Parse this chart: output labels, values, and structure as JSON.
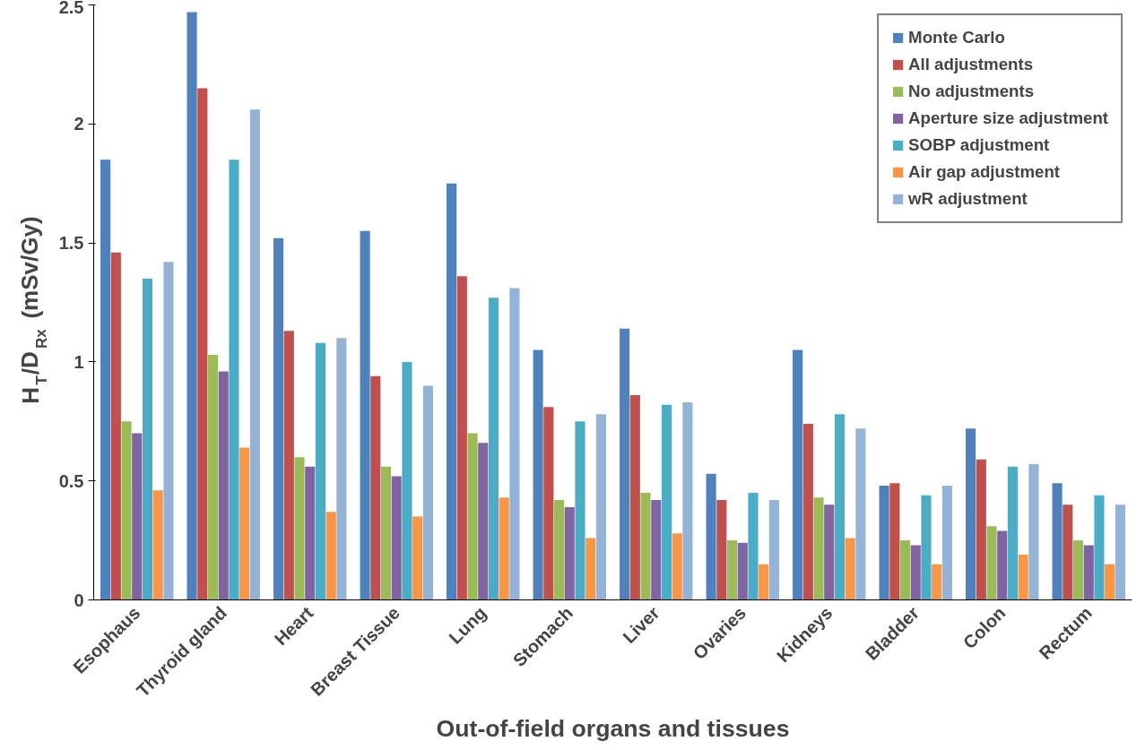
{
  "chart_data": {
    "type": "bar",
    "xlabel": "Out-of-field organs and tissues",
    "ylabel": "H$_{T}$/D$_{Rx}$ (mSv/Gy)",
    "categories": [
      "Esophaus",
      "Thyroid gland",
      "Heart",
      "Breast Tissue",
      "Lung",
      "Stomach",
      "Liver",
      "Ovaries",
      "Kidneys",
      "Bladder",
      "Colon",
      "Rectum"
    ],
    "ylim": [
      0,
      2.5
    ],
    "yticks": [
      0,
      0.5,
      1,
      1.5,
      2,
      2.5
    ],
    "grid": false,
    "legend": "top right",
    "series": [
      {
        "name": "Monte Carlo",
        "color": "#4f81bd",
        "values": [
          1.85,
          2.47,
          1.52,
          1.55,
          1.75,
          1.05,
          1.14,
          0.53,
          1.05,
          0.48,
          0.72,
          0.49
        ]
      },
      {
        "name": "All adjustments",
        "color": "#c0504d",
        "values": [
          1.46,
          2.15,
          1.13,
          0.94,
          1.36,
          0.81,
          0.86,
          0.42,
          0.74,
          0.49,
          0.59,
          0.4
        ]
      },
      {
        "name": "No adjustments",
        "color": "#9bbb59",
        "values": [
          0.75,
          1.03,
          0.6,
          0.56,
          0.7,
          0.42,
          0.45,
          0.25,
          0.43,
          0.25,
          0.31,
          0.25
        ]
      },
      {
        "name": "Aperture size adjustment",
        "color": "#8064a2",
        "values": [
          0.7,
          0.96,
          0.56,
          0.52,
          0.66,
          0.39,
          0.42,
          0.24,
          0.4,
          0.23,
          0.29,
          0.23
        ]
      },
      {
        "name": "SOBP adjustment",
        "color": "#4bacc6",
        "values": [
          1.35,
          1.85,
          1.08,
          1.0,
          1.27,
          0.75,
          0.82,
          0.45,
          0.78,
          0.44,
          0.56,
          0.44
        ]
      },
      {
        "name": "Air gap adjustment",
        "color": "#f79646",
        "values": [
          0.46,
          0.64,
          0.37,
          0.35,
          0.43,
          0.26,
          0.28,
          0.15,
          0.26,
          0.15,
          0.19,
          0.15
        ]
      },
      {
        "name": "wR adjustment",
        "color": "#95b3d7",
        "values": [
          1.42,
          2.06,
          1.1,
          0.9,
          1.31,
          0.78,
          0.83,
          0.42,
          0.72,
          0.48,
          0.57,
          0.4
        ]
      }
    ]
  }
}
